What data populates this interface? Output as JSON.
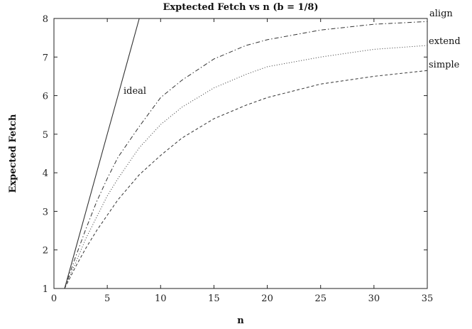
{
  "chart_data": {
    "type": "line",
    "title": "Exptected Fetch vs n (b = 1/8)",
    "xlabel": "n",
    "ylabel": "Expected Fetch",
    "xlim": [
      0,
      35
    ],
    "ylim": [
      1,
      8
    ],
    "xticks": [
      0,
      5,
      10,
      15,
      20,
      25,
      30,
      35
    ],
    "yticks": [
      1,
      2,
      3,
      4,
      5,
      6,
      7,
      8
    ],
    "grid": false,
    "legend": "inline labels at right end of curves",
    "series": [
      {
        "name": "ideal",
        "style": "solid",
        "x": [
          1,
          2,
          3,
          4,
          5,
          6,
          7,
          8
        ],
        "y": [
          1,
          2,
          3,
          4,
          5,
          6,
          7,
          8
        ]
      },
      {
        "name": "align",
        "style": "dashdot",
        "x": [
          1,
          2,
          3,
          4,
          5,
          6,
          8,
          10,
          12,
          15,
          18,
          20,
          25,
          30,
          35
        ],
        "y": [
          1.0,
          1.8,
          2.55,
          3.25,
          3.85,
          4.4,
          5.2,
          5.95,
          6.4,
          6.95,
          7.3,
          7.45,
          7.7,
          7.85,
          7.92
        ]
      },
      {
        "name": "extend",
        "style": "dotted",
        "x": [
          1,
          2,
          3,
          4,
          5,
          6,
          8,
          10,
          12,
          15,
          18,
          20,
          25,
          30,
          35
        ],
        "y": [
          1.0,
          1.65,
          2.3,
          2.85,
          3.4,
          3.85,
          4.65,
          5.25,
          5.7,
          6.2,
          6.55,
          6.75,
          7.0,
          7.2,
          7.3
        ]
      },
      {
        "name": "simple",
        "style": "dashed",
        "x": [
          1,
          2,
          3,
          4,
          5,
          6,
          8,
          10,
          12,
          15,
          18,
          20,
          25,
          30,
          35
        ],
        "y": [
          1.0,
          1.55,
          2.05,
          2.5,
          2.9,
          3.3,
          3.95,
          4.45,
          4.9,
          5.4,
          5.75,
          5.95,
          6.3,
          6.5,
          6.65
        ]
      }
    ]
  },
  "labels": {
    "ideal": "ideal",
    "align": "align",
    "extend": "extend",
    "simple": "simple"
  },
  "colors": {
    "axis": "#222222",
    "line": "#333333"
  }
}
